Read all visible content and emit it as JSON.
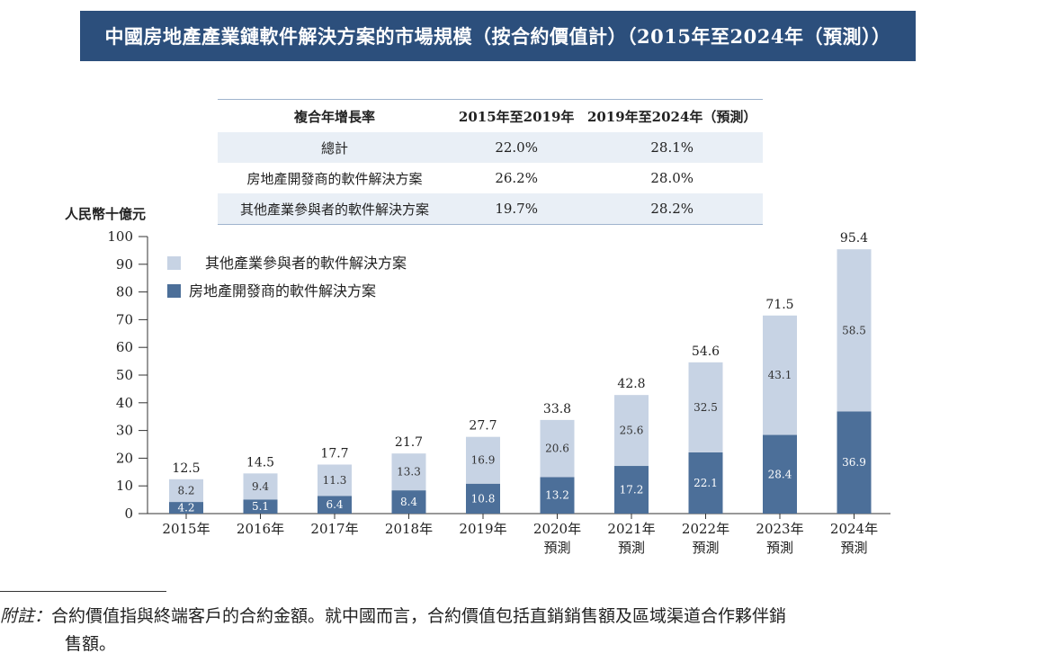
{
  "title": "中國房地產產業鏈軟件解決方案的市場規模（按合約價值計）（2015年至2024年（預測））",
  "cagr_table": {
    "header": [
      "複合年增長率",
      "2015年至2019年",
      "2019年至2024年（預測）"
    ],
    "rows": [
      {
        "label": "總計",
        "p1": "22.0%",
        "p2": "28.1%"
      },
      {
        "label": "房地產開發商的軟件解決方案",
        "p1": "26.2%",
        "p2": "28.0%"
      },
      {
        "label": "其他產業參與者的軟件解決方案",
        "p1": "19.7%",
        "p2": "28.2%"
      }
    ]
  },
  "chart_data": {
    "type": "bar",
    "stacked": true,
    "ylabel": "人民幣十億元",
    "ylim": [
      0,
      100
    ],
    "yticks": [
      0,
      10,
      20,
      30,
      40,
      50,
      60,
      70,
      80,
      90,
      100
    ],
    "categories": [
      {
        "year": "2015年",
        "note": ""
      },
      {
        "year": "2016年",
        "note": ""
      },
      {
        "year": "2017年",
        "note": ""
      },
      {
        "year": "2018年",
        "note": ""
      },
      {
        "year": "2019年",
        "note": ""
      },
      {
        "year": "2020年",
        "note": "預測"
      },
      {
        "year": "2021年",
        "note": "預測"
      },
      {
        "year": "2022年",
        "note": "預測"
      },
      {
        "year": "2023年",
        "note": "預測"
      },
      {
        "year": "2024年",
        "note": "預測"
      }
    ],
    "series": [
      {
        "name": "房地產開發商的軟件解決方案",
        "color": "#4c6f99",
        "values": [
          4.2,
          5.1,
          6.4,
          8.4,
          10.8,
          13.2,
          17.2,
          22.1,
          28.4,
          36.9
        ]
      },
      {
        "name": "其他產業參與者的軟件解決方案",
        "color": "#c7d3e4",
        "values": [
          8.2,
          9.4,
          11.3,
          13.3,
          16.9,
          20.6,
          25.6,
          32.5,
          43.1,
          58.5
        ]
      }
    ],
    "totals": [
      12.5,
      14.5,
      17.7,
      21.7,
      27.7,
      33.8,
      42.8,
      54.6,
      71.5,
      95.4
    ],
    "legend": [
      "其他產業參與者的軟件解決方案",
      "房地產開發商的軟件解決方案"
    ]
  },
  "footnote": {
    "label": "附註：",
    "line1": "合約價值指與終端客戶的合約金額。就中國而言，合約價值包括直銷銷售額及區域渠道合作夥伴銷",
    "line2": "售額。"
  }
}
